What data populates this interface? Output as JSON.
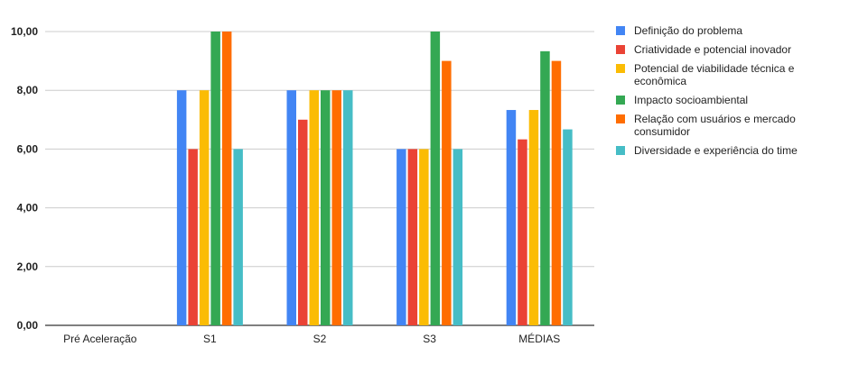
{
  "chart_data": {
    "type": "bar",
    "categories": [
      "Pré Aceleração",
      "S1",
      "S2",
      "S3",
      "MÉDIAS"
    ],
    "series": [
      {
        "name": "Definição do problema",
        "color": "#4285F4",
        "values": [
          0,
          8,
          8,
          6,
          7.33
        ]
      },
      {
        "name": "Criatividade e potencial inovador",
        "color": "#EA4335",
        "values": [
          0,
          6,
          7,
          6,
          6.33
        ]
      },
      {
        "name": "Potencial de viabilidade técnica e econômica",
        "color": "#FBBC04",
        "values": [
          0,
          8,
          8,
          6,
          7.33
        ]
      },
      {
        "name": "Impacto socioambiental",
        "color": "#34A853",
        "values": [
          0,
          10,
          8,
          10,
          9.33
        ]
      },
      {
        "name": "Relação com usuários e mercado consumidor",
        "color": "#FF6D01",
        "values": [
          0,
          10,
          8,
          9,
          9
        ]
      },
      {
        "name": "Diversidade e experiência do time",
        "color": "#46BDC6",
        "values": [
          0,
          6,
          8,
          6,
          6.67
        ]
      }
    ],
    "ylim": [
      0,
      10
    ],
    "yticks": [
      "0,00",
      "2,00",
      "4,00",
      "6,00",
      "8,00",
      "10,00"
    ],
    "grid": true,
    "legend_position": "right"
  }
}
